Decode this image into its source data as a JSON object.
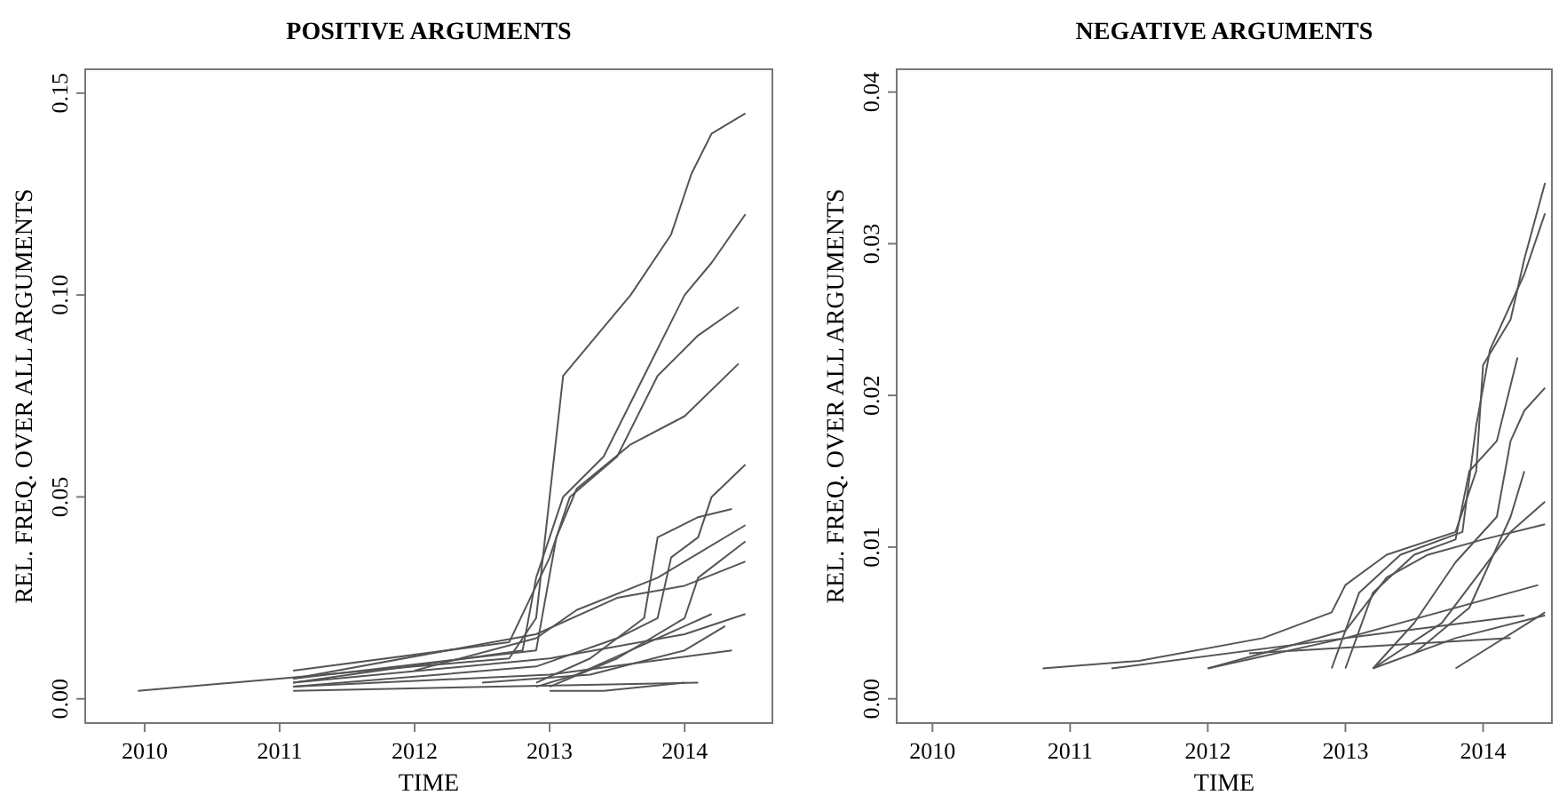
{
  "chart_data": [
    {
      "type": "line",
      "title": "POSITIVE ARGUMENTS",
      "xlabel": "TIME",
      "ylabel": "REL. FREQ. OVER ALL ARGUMENTS",
      "xlim": [
        2009.56,
        2014.65
      ],
      "ylim": [
        -0.006,
        0.1559
      ],
      "xticks": [
        2010,
        2011,
        2012,
        2013,
        2014
      ],
      "yticks": [
        {
          "value": 0,
          "label": "0.00"
        },
        {
          "value": 0.05,
          "label": "0.05"
        },
        {
          "value": 0.1,
          "label": "0.10"
        },
        {
          "value": 0.15,
          "label": "0.15"
        }
      ],
      "grid": false,
      "line_style": "solid",
      "series": [
        {
          "color": "#555555",
          "x": [
            2009.95,
            2011,
            2012,
            2012.7,
            2012.9,
            2013,
            2013.1,
            2013.3,
            2013.6,
            2013.9,
            2014.05,
            2014.2,
            2014.45
          ],
          "values": [
            0.002,
            0.005,
            0.008,
            0.01,
            0.02,
            0.05,
            0.08,
            0.088,
            0.1,
            0.115,
            0.13,
            0.14,
            0.145
          ]
        },
        {
          "color": "#555555",
          "x": [
            2011.1,
            2012.8,
            2012.9,
            2013.1,
            2013.4,
            2013.7,
            2014,
            2014.2,
            2014.45
          ],
          "values": [
            0.004,
            0.012,
            0.03,
            0.05,
            0.06,
            0.08,
            0.1,
            0.108,
            0.12
          ]
        },
        {
          "color": "#555555",
          "x": [
            2011.1,
            2012.7,
            2013,
            2013.15,
            2013.5,
            2013.8,
            2014.1,
            2014.4
          ],
          "values": [
            0.007,
            0.014,
            0.035,
            0.05,
            0.06,
            0.08,
            0.09,
            0.097
          ]
        },
        {
          "color": "#555555",
          "x": [
            2011.1,
            2012.9,
            2013.05,
            2013.2,
            2013.6,
            2014,
            2014.4
          ],
          "values": [
            0.005,
            0.012,
            0.04,
            0.052,
            0.063,
            0.07,
            0.083
          ]
        },
        {
          "color": "#555555",
          "x": [
            2011.1,
            2012.9,
            2013.5,
            2013.8,
            2013.9,
            2014.1,
            2014.2,
            2014.45
          ],
          "values": [
            0.003,
            0.008,
            0.015,
            0.02,
            0.035,
            0.04,
            0.05,
            0.058
          ]
        },
        {
          "color": "#555555",
          "x": [
            2012.9,
            2013.3,
            2013.7,
            2013.8,
            2014.1,
            2014.35
          ],
          "values": [
            0.004,
            0.01,
            0.02,
            0.04,
            0.045,
            0.047
          ]
        },
        {
          "color": "#555555",
          "x": [
            2012,
            2012.9,
            2013.2,
            2013.8,
            2014,
            2014.45
          ],
          "values": [
            0.007,
            0.015,
            0.022,
            0.03,
            0.034,
            0.043
          ]
        },
        {
          "color": "#555555",
          "x": [
            2013,
            2013.5,
            2014,
            2014.1,
            2014.45
          ],
          "values": [
            0.003,
            0.01,
            0.02,
            0.03,
            0.039
          ]
        },
        {
          "color": "#555555",
          "x": [
            2011.1,
            2012.9,
            2013.5,
            2014,
            2014.45
          ],
          "values": [
            0.005,
            0.016,
            0.025,
            0.028,
            0.034
          ]
        },
        {
          "color": "#555555",
          "x": [
            2011.1,
            2013,
            2014,
            2014.45
          ],
          "values": [
            0.004,
            0.01,
            0.016,
            0.021
          ]
        },
        {
          "color": "#555555",
          "x": [
            2012.5,
            2013.3,
            2014,
            2014.3
          ],
          "values": [
            0.004,
            0.006,
            0.012,
            0.018
          ]
        },
        {
          "color": "#555555",
          "x": [
            2011.1,
            2013,
            2014.35
          ],
          "values": [
            0.003,
            0.006,
            0.012
          ]
        },
        {
          "color": "#555555",
          "x": [
            2011.1,
            2014.1
          ],
          "values": [
            0.002,
            0.004
          ]
        },
        {
          "color": "#555555",
          "x": [
            2013,
            2013.4,
            2014
          ],
          "values": [
            0.002,
            0.002,
            0.004
          ]
        },
        {
          "color": "#555555",
          "x": [
            2012.9,
            2013.2,
            2013.6,
            2014.2
          ],
          "values": [
            0.003,
            0.006,
            0.012,
            0.021
          ]
        }
      ]
    },
    {
      "type": "line",
      "title": "NEGATIVE ARGUMENTS",
      "xlabel": "TIME",
      "ylabel": "REL. FREQ. OVER ALL ARGUMENTS",
      "xlim": [
        2009.74,
        2014.5
      ],
      "ylim": [
        -0.0016,
        0.0415
      ],
      "xticks": [
        2010,
        2011,
        2012,
        2013,
        2014
      ],
      "yticks": [
        {
          "value": 0,
          "label": "0.00"
        },
        {
          "value": 0.01,
          "label": "0.01"
        },
        {
          "value": 0.02,
          "label": "0.02"
        },
        {
          "value": 0.03,
          "label": "0.03"
        },
        {
          "value": 0.04,
          "label": "0.04"
        }
      ],
      "grid": false,
      "line_style": "solid",
      "series": [
        {
          "color": "#555555",
          "x": [
            2010.8,
            2011.5,
            2012.4,
            2012.9,
            2013,
            2013.3,
            2013.8,
            2013.95,
            2014,
            2014.2,
            2014.3,
            2014.45
          ],
          "values": [
            0.002,
            0.0025,
            0.004,
            0.0057,
            0.0075,
            0.0095,
            0.011,
            0.015,
            0.022,
            0.025,
            0.029,
            0.034
          ]
        },
        {
          "color": "#555555",
          "x": [
            2012.9,
            2013.1,
            2013.4,
            2013.85,
            2013.95,
            2014.05,
            2014.3,
            2014.45
          ],
          "values": [
            0.002,
            0.007,
            0.0095,
            0.011,
            0.018,
            0.023,
            0.028,
            0.032
          ]
        },
        {
          "color": "#555555",
          "x": [
            2013,
            2013.2,
            2013.5,
            2013.8,
            2013.9,
            2014.1,
            2014.25
          ],
          "values": [
            0.002,
            0.007,
            0.0095,
            0.0105,
            0.015,
            0.017,
            0.0225
          ]
        },
        {
          "color": "#555555",
          "x": [
            2013.2,
            2013.5,
            2013.8,
            2014.1,
            2014.2,
            2014.3,
            2014.45
          ],
          "values": [
            0.002,
            0.005,
            0.009,
            0.012,
            0.017,
            0.019,
            0.0205
          ]
        },
        {
          "color": "#555555",
          "x": [
            2012,
            2013,
            2013.3,
            2013.6,
            2014,
            2014.45
          ],
          "values": [
            0.002,
            0.0045,
            0.008,
            0.0095,
            0.0105,
            0.0115
          ]
        },
        {
          "color": "#555555",
          "x": [
            2013.2,
            2013.7,
            2014.2,
            2014.45
          ],
          "values": [
            0.002,
            0.005,
            0.011,
            0.013
          ]
        },
        {
          "color": "#555555",
          "x": [
            2013.5,
            2013.9,
            2014.2,
            2014.3
          ],
          "values": [
            0.003,
            0.006,
            0.012,
            0.015
          ]
        },
        {
          "color": "#555555",
          "x": [
            2012,
            2013,
            2014.4
          ],
          "values": [
            0.002,
            0.004,
            0.0075
          ]
        },
        {
          "color": "#555555",
          "x": [
            2011.3,
            2013,
            2014.3
          ],
          "values": [
            0.002,
            0.004,
            0.0055
          ]
        },
        {
          "color": "#555555",
          "x": [
            2013.2,
            2013.8,
            2014.45
          ],
          "values": [
            0.002,
            0.004,
            0.0055
          ]
        },
        {
          "color": "#555555",
          "x": [
            2013.8,
            2014.45
          ],
          "values": [
            0.002,
            0.0057
          ]
        },
        {
          "color": "#555555",
          "x": [
            2012.3,
            2014.2
          ],
          "values": [
            0.003,
            0.004
          ]
        }
      ]
    }
  ]
}
